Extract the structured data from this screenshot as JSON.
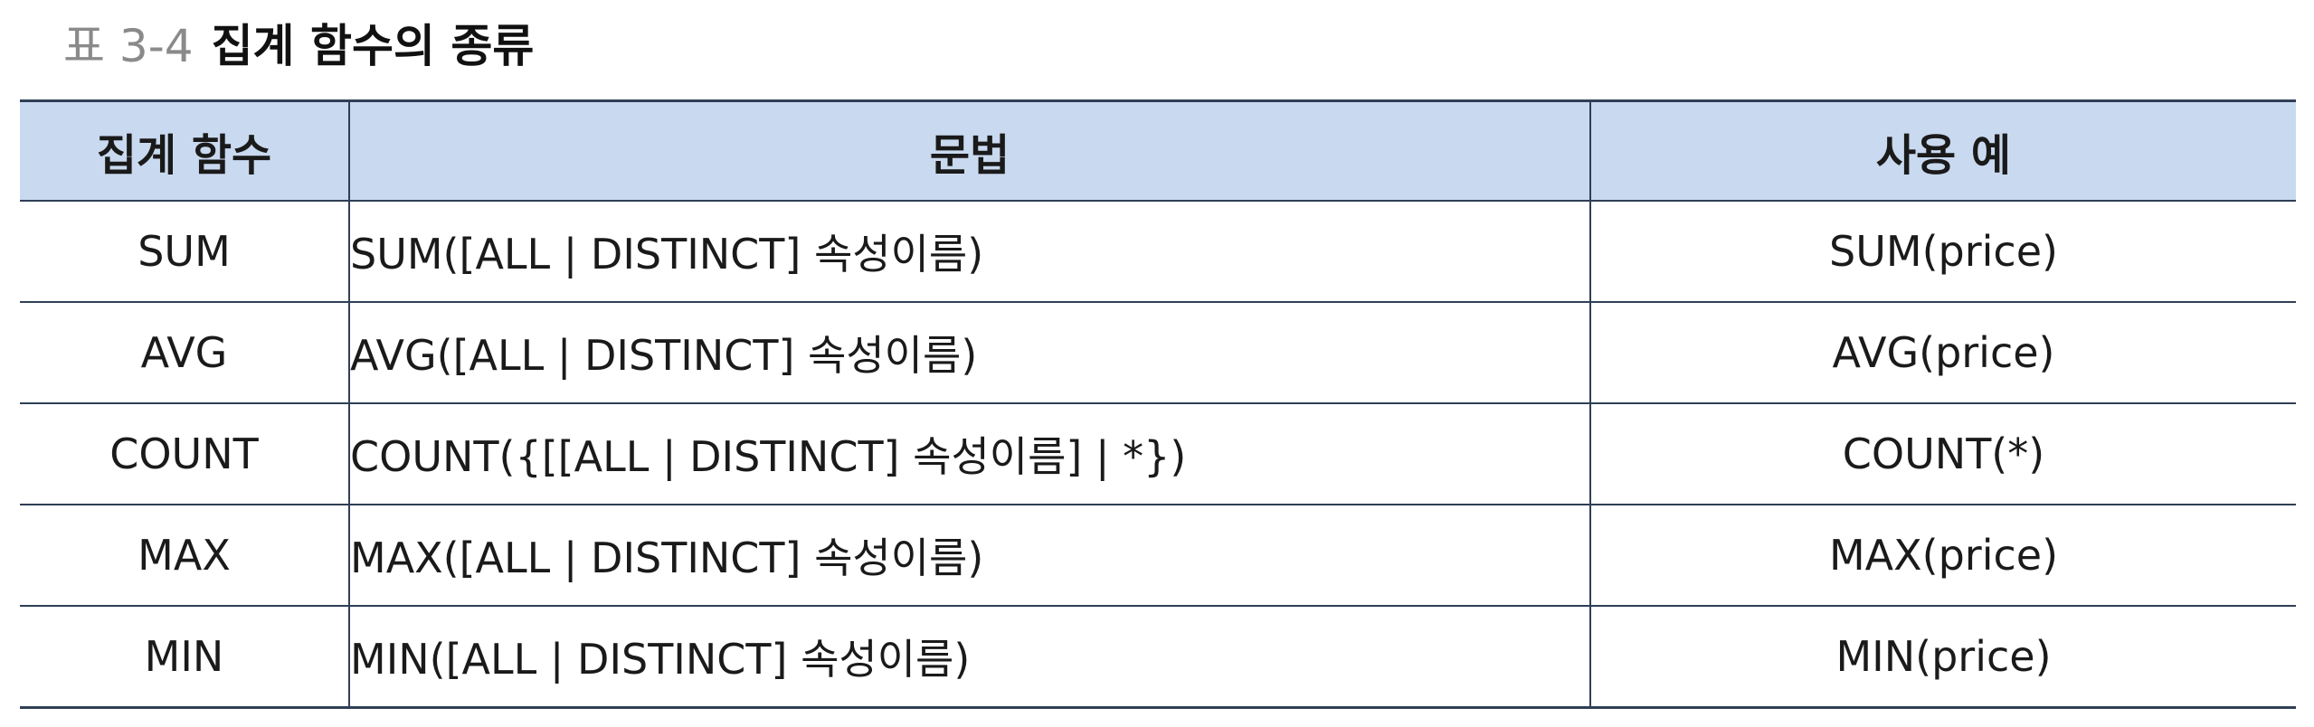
{
  "caption": {
    "label": "표 3-4",
    "title": "집계 함수의 종류"
  },
  "table": {
    "headers": [
      "집계 함수",
      "문법",
      "사용 예"
    ],
    "rows": [
      {
        "function": "SUM",
        "syntax": "SUM([ALL | DISTINCT] 속성이름)",
        "example": "SUM(price)"
      },
      {
        "function": "AVG",
        "syntax": "AVG([ALL | DISTINCT] 속성이름)",
        "example": "AVG(price)"
      },
      {
        "function": "COUNT",
        "syntax": "COUNT({[[ALL | DISTINCT] 속성이름] | *})",
        "example": "COUNT(*)"
      },
      {
        "function": "MAX",
        "syntax": "MAX([ALL | DISTINCT] 속성이름)",
        "example": "MAX(price)"
      },
      {
        "function": "MIN",
        "syntax": "MIN([ALL | DISTINCT] 속성이름)",
        "example": "MIN(price)"
      }
    ]
  },
  "colors": {
    "header_background": "#c9d9ef",
    "rule": "#2f3f55",
    "caption_label": "#8a8a8a"
  }
}
